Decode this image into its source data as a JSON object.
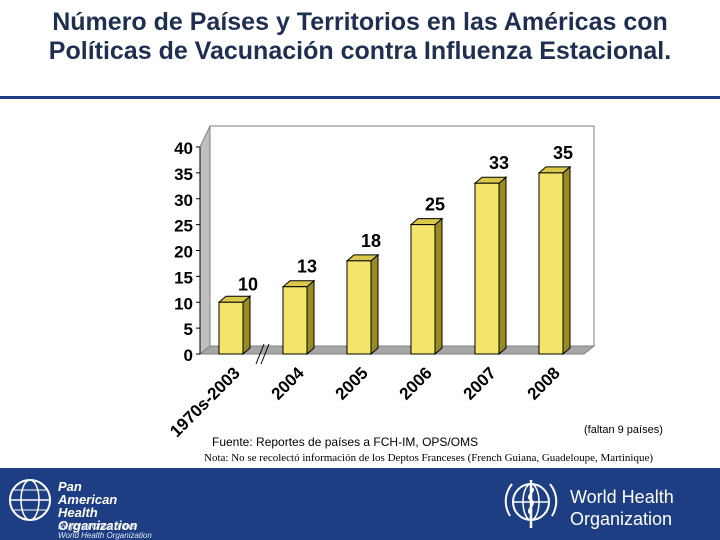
{
  "title": "Número de Países y Territorios en las Américas con Políticas de Vacunación contra Influenza Estacional.",
  "chart_data": {
    "type": "bar",
    "categories": [
      "1970s-2003",
      "2004",
      "2005",
      "2006",
      "2007",
      "2008"
    ],
    "values": [
      10,
      13,
      18,
      25,
      33,
      35
    ],
    "data_labels": [
      "10",
      "13",
      "18",
      "25",
      "33",
      "35"
    ],
    "ylim": [
      0,
      40
    ],
    "yticks": [
      "0",
      "5",
      "10",
      "15",
      "20",
      "25",
      "30",
      "35",
      "40"
    ],
    "grid": false,
    "bar_color": "#f3e46b",
    "axis_break": true
  },
  "source": "Fuente: Reportes de países a FCH-IM, OPS/OMS",
  "missing_note": "(faltan 9 países)",
  "note": "Nota: No se recolectó información de los Deptos Franceses (French Guiana, Guadeloupe, Martinique)",
  "footer": {
    "paho_name": [
      "Pan American",
      "Health",
      "Organization"
    ],
    "paho_sub": [
      "Regional Office of the",
      "World Health Organization"
    ],
    "who_name": [
      "World Health",
      "Organization"
    ],
    "bar_color": "#1d3e82"
  }
}
